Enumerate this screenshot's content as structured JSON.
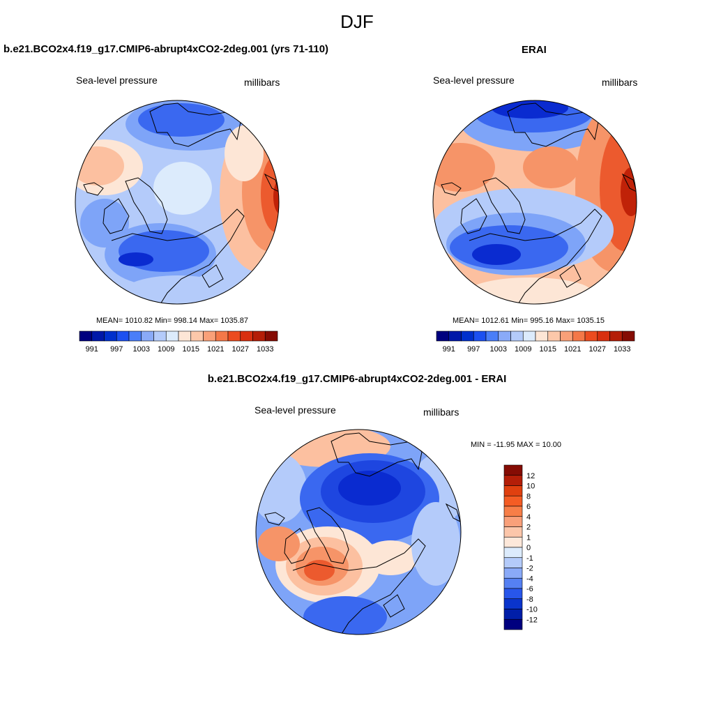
{
  "figure": {
    "title": "DJF",
    "left_panel_title": "b.e21.BCO2x4.f19_g17.CMIP6-abrupt4xCO2-2deg.001 (yrs 71-110)",
    "right_panel_title": "ERAI",
    "diff_panel_title": "b.e21.BCO2x4.f19_g17.CMIP6-abrupt4xCO2-2deg.001 - ERAI"
  },
  "panels": {
    "model": {
      "variable": "Sea-level pressure",
      "units": "millibars",
      "stats": "MEAN= 1010.82  Min= 998.14  Max= 1035.87"
    },
    "obs": {
      "variable": "Sea-level pressure",
      "units": "millibars",
      "stats": "MEAN= 1012.61  Min= 995.16  Max= 1035.15"
    },
    "diff": {
      "variable": "Sea-level pressure",
      "units": "millibars",
      "stats": "MIN = -11.95 MAX =  10.00"
    }
  },
  "colorbars": {
    "abs": {
      "labels": [
        "991",
        "997",
        "1003",
        "1009",
        "1015",
        "1021",
        "1027",
        "1033"
      ],
      "colors": [
        "#00007f",
        "#0018a8",
        "#0030cc",
        "#1c50f0",
        "#4a7ef8",
        "#8aaaf8",
        "#b4cbfa",
        "#dcebfc",
        "#fde6d6",
        "#fcc8aa",
        "#f9a078",
        "#f47848",
        "#ec4c20",
        "#d83010",
        "#b41e08",
        "#850c04"
      ]
    },
    "diff": {
      "labels": [
        "12",
        "10",
        "8",
        "6",
        "4",
        "2",
        "1",
        "0",
        "-1",
        "-2",
        "-4",
        "-6",
        "-8",
        "-10",
        "-12"
      ],
      "colors": [
        "#850c04",
        "#b41e08",
        "#e0400f",
        "#f45c24",
        "#f77e48",
        "#f9a07a",
        "#fcc6aa",
        "#fde8da",
        "#dcebfc",
        "#b4cbfa",
        "#8aaaf8",
        "#5580f2",
        "#2856ea",
        "#0a34cc",
        "#001ea8",
        "#00007f"
      ]
    }
  },
  "map_colors": {
    "deep_blue": "#0a2bd0",
    "blue": "#3a68f0",
    "mid_blue": "#7ea4f8",
    "light_blue": "#b4cbfa",
    "pale_blue": "#dcebfc",
    "pale_orange": "#fde6d6",
    "light_orange": "#fcc0a0",
    "orange": "#f69468",
    "red_orange": "#ec5a2e",
    "dark_red": "#c02208"
  }
}
